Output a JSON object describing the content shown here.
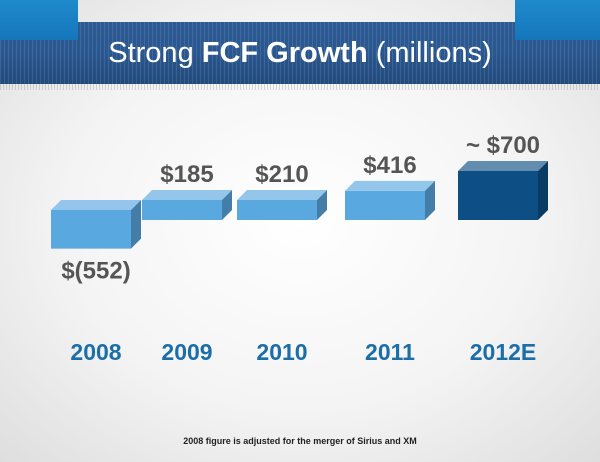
{
  "slide": {
    "title_prefix": "Strong ",
    "title_bold": "FCF Growth",
    "title_suffix": " (millions)",
    "footnote": "2008 figure is adjusted for the merger of Sirius and XM"
  },
  "colors": {
    "banner": "#2a578f",
    "accent": "#1a7fc3",
    "bar_actual": "#5aa8e0",
    "bar_estimate": "#0d4f84",
    "year_label": "#1b6ea8",
    "value_label": "#555555"
  },
  "chart_data": {
    "type": "bar",
    "style": "3d-blocks",
    "title": "Strong FCF Growth (millions)",
    "xlabel": "",
    "ylabel": "",
    "categories": [
      "2008",
      "2009",
      "2010",
      "2011",
      "2012E"
    ],
    "values": [
      -552,
      185,
      210,
      416,
      700
    ],
    "data_labels": [
      "$(552)",
      "$185",
      "$210",
      "$416",
      "~ $700"
    ],
    "estimated": [
      false,
      false,
      false,
      false,
      true
    ],
    "grid": false,
    "legend": "none"
  }
}
